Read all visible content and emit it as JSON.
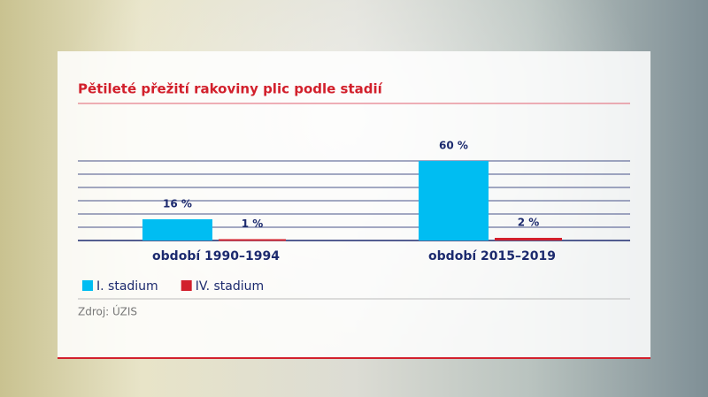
{
  "chart_data": {
    "type": "bar",
    "title": "Pětileté přežití rakoviny plic podle stadií",
    "categories": [
      "období 1990–1994",
      "období 2015–2019"
    ],
    "series": [
      {
        "name": "I. stadium",
        "color": "#00bdf2",
        "values": [
          16,
          60
        ],
        "value_labels": [
          "16 %",
          "60 %"
        ]
      },
      {
        "name": "IV. stadium",
        "color": "#d2202c",
        "values": [
          1,
          2
        ],
        "value_labels": [
          "1 %",
          "2 %"
        ]
      }
    ],
    "ylim": [
      0,
      60
    ],
    "yticks": [
      0,
      10,
      20,
      30,
      40,
      50,
      60
    ],
    "grid": true,
    "source": "Zdroj: ÚZIS"
  }
}
